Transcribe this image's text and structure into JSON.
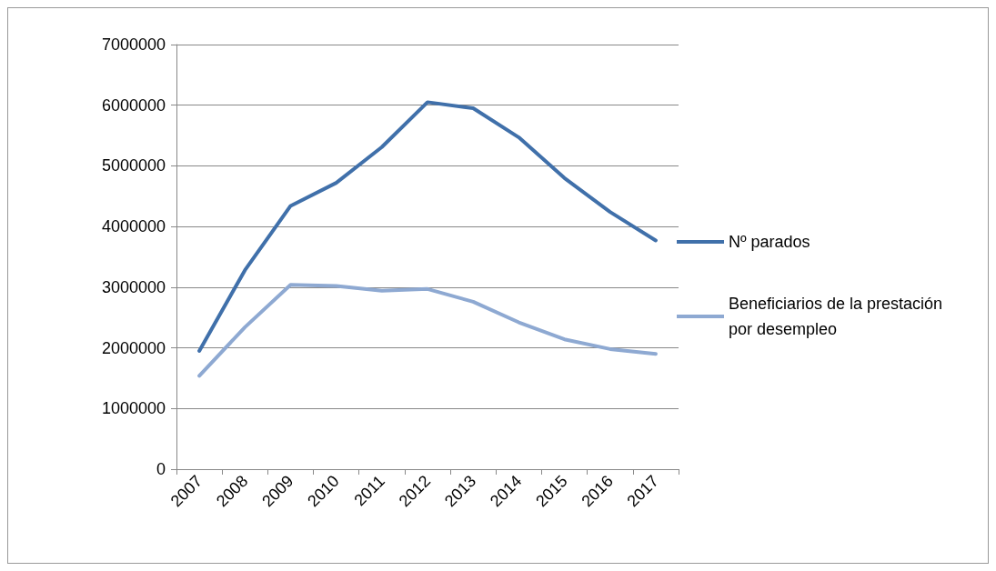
{
  "chart_data": {
    "type": "line",
    "categories": [
      "2007",
      "2008",
      "2009",
      "2010",
      "2011",
      "2012",
      "2013",
      "2014",
      "2015",
      "2016",
      "2017"
    ],
    "series": [
      {
        "name": "Nº parados",
        "color": "#4070aa",
        "values": [
          1950000,
          3280000,
          4340000,
          4720000,
          5310000,
          6050000,
          5950000,
          5470000,
          4800000,
          4240000,
          3770000
        ]
      },
      {
        "name": "Beneficiarios de la prestación por desempleo",
        "color": "#8ea9d2",
        "values": [
          1540000,
          2340000,
          3040000,
          3020000,
          2940000,
          2970000,
          2760000,
          2420000,
          2140000,
          1980000,
          1900000
        ]
      }
    ],
    "ylim": [
      0,
      7000000
    ],
    "yticks": [
      0,
      1000000,
      2000000,
      3000000,
      4000000,
      5000000,
      6000000,
      7000000
    ],
    "grid": "y",
    "legend": "right",
    "marker": "none",
    "line_style": "solid"
  }
}
